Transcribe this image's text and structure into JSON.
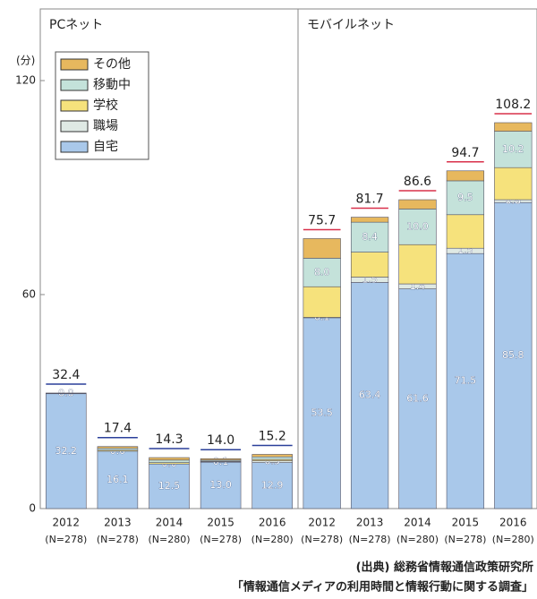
{
  "chart_data": [
    {
      "type": "bar",
      "stacked": true,
      "title": "PCネット",
      "title_color": "#2a3f9a",
      "y_label": "(分)",
      "ylim": [
        0,
        120
      ],
      "yticks": [
        0,
        60,
        120
      ],
      "categories": [
        "2012",
        "2013",
        "2014",
        "2015",
        "2016"
      ],
      "n_labels": [
        "(N=278)",
        "(N=278)",
        "(N=280)",
        "(N=278)",
        "(N=280)"
      ],
      "series": [
        {
          "name": "自宅",
          "color": "#a9c8ea",
          "values": [
            32.2,
            16.1,
            12.5,
            13.0,
            12.9
          ],
          "value_labels": [
            "32.2",
            "16.1",
            "12.5",
            "13.0",
            "12.9"
          ]
        },
        {
          "name": "職場",
          "color": "#dfe9e4",
          "values": [
            0.0,
            0.0,
            0.0,
            0.1,
            0.5
          ],
          "value_labels": [
            "0.0",
            "0.0",
            "0.0",
            "0.1",
            "0.5"
          ]
        },
        {
          "name": "学校",
          "color": "#f6e27c",
          "values": [
            0.0,
            0.3,
            0.4,
            0.2,
            0.4
          ]
        },
        {
          "name": "移動中",
          "color": "#c4e2da",
          "values": [
            0.1,
            0.5,
            0.7,
            0.3,
            0.7
          ]
        },
        {
          "name": "その他",
          "color": "#e7b85e",
          "values": [
            0.1,
            0.5,
            0.7,
            0.4,
            0.7
          ]
        }
      ],
      "totals": [
        32.4,
        17.4,
        14.3,
        14.0,
        15.2
      ],
      "total_labels": [
        "32.4",
        "17.4",
        "14.3",
        "14.0",
        "15.2"
      ],
      "total_color": "#2a3f9a"
    },
    {
      "type": "bar",
      "stacked": true,
      "title": "モバイルネット",
      "title_color": "#d9304a",
      "ylim": [
        0,
        120
      ],
      "categories": [
        "2012",
        "2013",
        "2014",
        "2015",
        "2016"
      ],
      "n_labels": [
        "(N=278)",
        "(N=278)",
        "(N=280)",
        "(N=278)",
        "(N=280)"
      ],
      "series": [
        {
          "name": "自宅",
          "color": "#a9c8ea",
          "values": [
            53.5,
            63.4,
            61.6,
            71.5,
            85.8
          ],
          "value_labels": [
            "53.5",
            "63.4",
            "61.6",
            "71.5",
            "85.8"
          ]
        },
        {
          "name": "職場",
          "color": "#dfe9e4",
          "values": [
            0.1,
            1.5,
            1.4,
            1.5,
            0.8
          ],
          "value_labels": [
            "0.1",
            "1.5",
            "1.4",
            "1.5",
            "0.8"
          ]
        },
        {
          "name": "学校",
          "color": "#f6e27c",
          "values": [
            8.6,
            7.0,
            11.0,
            9.4,
            9.0
          ]
        },
        {
          "name": "移動中",
          "color": "#c4e2da",
          "values": [
            8.0,
            8.4,
            10.0,
            9.5,
            10.2
          ],
          "value_labels": [
            "8.0",
            "8.4",
            "10.0",
            "9.5",
            "10.2"
          ]
        },
        {
          "name": "その他",
          "color": "#e7b85e",
          "values": [
            5.5,
            1.4,
            2.6,
            2.8,
            2.4
          ]
        }
      ],
      "totals": [
        75.7,
        81.7,
        86.6,
        94.7,
        108.2
      ],
      "total_labels": [
        "75.7",
        "81.7",
        "86.6",
        "94.7",
        "108.2"
      ],
      "total_color": "#d9304a"
    }
  ],
  "source": [
    "(出典) 総務省情報通信政策研究所",
    "「情報通信メディアの利用時間と情報行動に関する調査」"
  ]
}
